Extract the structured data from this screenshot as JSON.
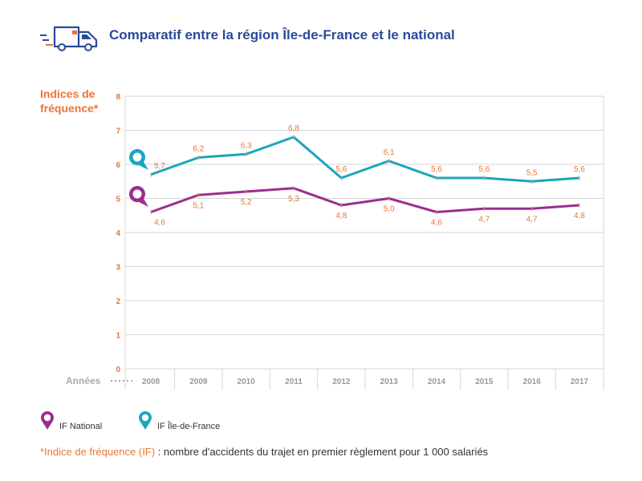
{
  "header": {
    "title": "Comparatif entre la région Île-de-France et le national",
    "icon": "delivery-van-icon"
  },
  "colors": {
    "title": "#2a4a9b",
    "accent": "#e8763a",
    "national": "#9b2e8f",
    "idf": "#1aa5c0",
    "grid": "#d6d6d6"
  },
  "chart_data": {
    "type": "line",
    "title": "Comparatif entre la région Île-de-France et le national",
    "ylabel_line1": "Indices de",
    "ylabel_line2": "fréquence*",
    "xlabel": "Années",
    "ylim": [
      0,
      8
    ],
    "yticks": [
      "0",
      "1",
      "2",
      "3",
      "4",
      "5",
      "6",
      "7",
      "8"
    ],
    "categories": [
      "2008",
      "2009",
      "2010",
      "2011",
      "2012",
      "2013",
      "2014",
      "2015",
      "2016",
      "2017"
    ],
    "series": [
      {
        "name": "IF Île-de-France",
        "values": [
          5.7,
          6.2,
          6.3,
          6.8,
          5.6,
          6.1,
          5.6,
          5.6,
          5.5,
          5.6
        ],
        "labels": [
          "5,7",
          "6,2",
          "6,3",
          "6,8",
          "5,6",
          "6,1",
          "5,6",
          "5,6",
          "5,5",
          "5,6"
        ]
      },
      {
        "name": "IF National",
        "values": [
          4.6,
          5.1,
          5.2,
          5.3,
          4.8,
          5.0,
          4.6,
          4.7,
          4.7,
          4.8
        ],
        "labels": [
          "4,6",
          "5,1",
          "5,2",
          "5,3",
          "4,8",
          "5,0",
          "4,6",
          "4,7",
          "4,7",
          "4,8"
        ]
      }
    ]
  },
  "legend": {
    "national": "IF National",
    "idf": "IF Île-de-France"
  },
  "footnote": {
    "term": "*Indice de fréquence (IF)",
    "definition": " : nombre d'accidents du trajet en premier règlement pour 1 000 salariés"
  }
}
